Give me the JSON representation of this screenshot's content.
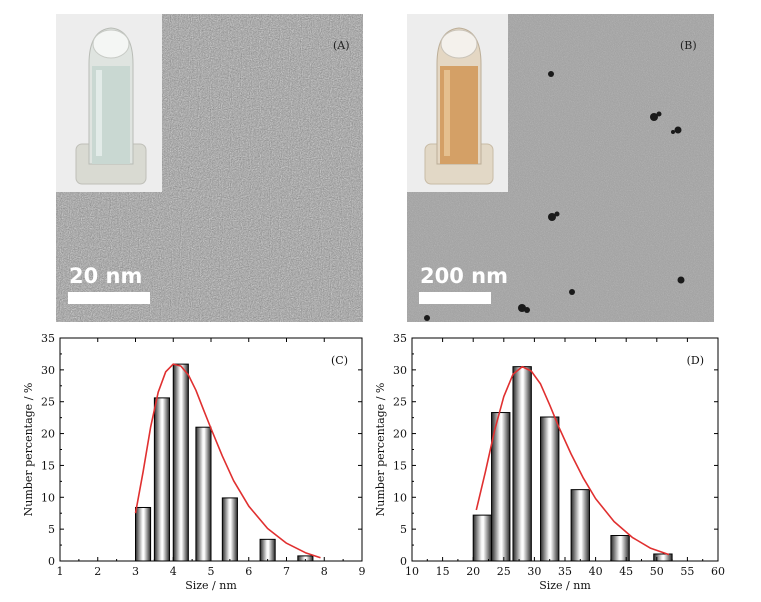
{
  "images": [
    {
      "label": "(A)",
      "scale_text": "20 nm",
      "vial_color": "#c9d8d2",
      "bg_color": "#9a9a9a"
    },
    {
      "label": "(B)",
      "scale_text": "200 nm",
      "vial_color": "#d4a066",
      "bg_color": "#9c9c9c"
    }
  ],
  "chart_data": [
    {
      "type": "bar",
      "panel_label": "(C)",
      "xlabel": "Size / nm",
      "ylabel": "Number percentage / %",
      "xlim": [
        1,
        9
      ],
      "ylim": [
        0,
        35
      ],
      "xticks": [
        1,
        2,
        3,
        4,
        5,
        6,
        7,
        8,
        9
      ],
      "yticks": [
        0,
        5,
        10,
        15,
        20,
        25,
        30,
        35
      ],
      "bar_width": 0.4,
      "x": [
        3.2,
        3.7,
        4.2,
        4.8,
        5.5,
        6.5,
        7.5
      ],
      "values": [
        8.4,
        25.6,
        30.9,
        21.0,
        9.9,
        3.4,
        0.8
      ],
      "fit_curve": {
        "color": "#e03030",
        "x": [
          3.0,
          3.2,
          3.4,
          3.6,
          3.8,
          4.0,
          4.2,
          4.4,
          4.6,
          4.8,
          5.0,
          5.3,
          5.6,
          6.0,
          6.5,
          7.0,
          7.5,
          7.9
        ],
        "y": [
          7.5,
          14,
          21,
          26.5,
          29.7,
          30.9,
          30.6,
          29.2,
          26.8,
          23.8,
          20.8,
          16.5,
          12.6,
          8.6,
          5.1,
          2.8,
          1.3,
          0.5
        ]
      },
      "bar_color": "#808080"
    },
    {
      "type": "bar",
      "panel_label": "(D)",
      "xlabel": "Size / nm",
      "ylabel": "Number percentage / %",
      "xlim": [
        10,
        60
      ],
      "ylim": [
        0,
        35
      ],
      "xticks": [
        10,
        15,
        20,
        25,
        30,
        35,
        40,
        45,
        50,
        55,
        60
      ],
      "yticks": [
        0,
        5,
        10,
        15,
        20,
        25,
        30,
        35
      ],
      "bar_width": 3,
      "x": [
        21.5,
        24.5,
        28,
        32.5,
        37.5,
        44,
        51
      ],
      "values": [
        7.2,
        23.3,
        30.5,
        22.6,
        11.2,
        4.0,
        1.1
      ],
      "fit_curve": {
        "color": "#e03030",
        "x": [
          20.5,
          22,
          23.5,
          25,
          26.5,
          28,
          29.5,
          31,
          32.5,
          34,
          36,
          38,
          40,
          43,
          46,
          49,
          52
        ],
        "y": [
          8,
          14,
          20.5,
          25.8,
          29.3,
          30.5,
          29.8,
          27.8,
          24.5,
          21,
          16.8,
          13,
          9.8,
          6.2,
          3.7,
          2.0,
          1.0
        ]
      },
      "bar_color": "#808080"
    }
  ]
}
